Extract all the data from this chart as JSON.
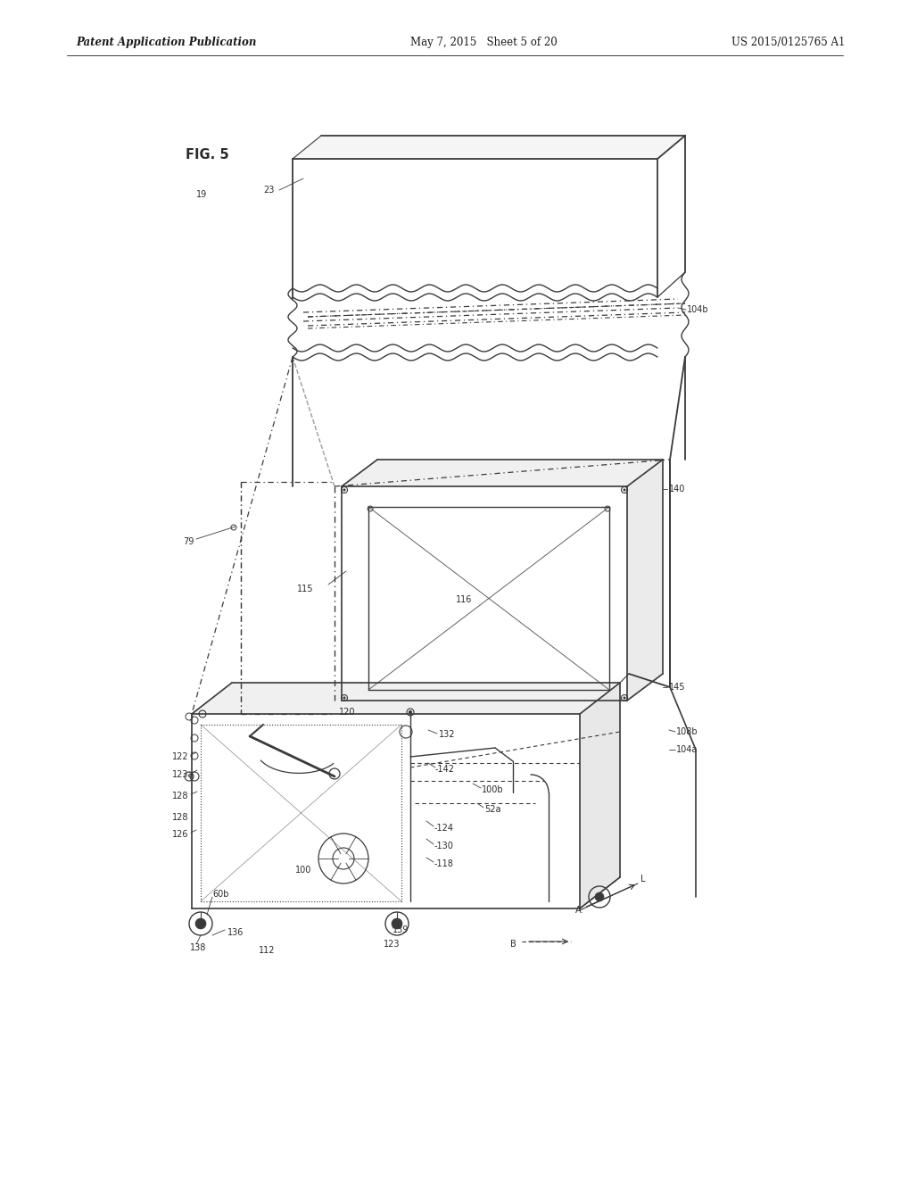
{
  "background_color": "#ffffff",
  "header_left": "Patent Application Publication",
  "header_mid": "May 7, 2015   Sheet 5 of 20",
  "header_right": "US 2015/0125765 A1",
  "fig_label": "FIG. 5",
  "line_color": "#3a3a3a",
  "label_color": "#2a2a2a",
  "font_size_header": 8.5,
  "font_size_label": 7.0,
  "font_size_fig": 10.5
}
